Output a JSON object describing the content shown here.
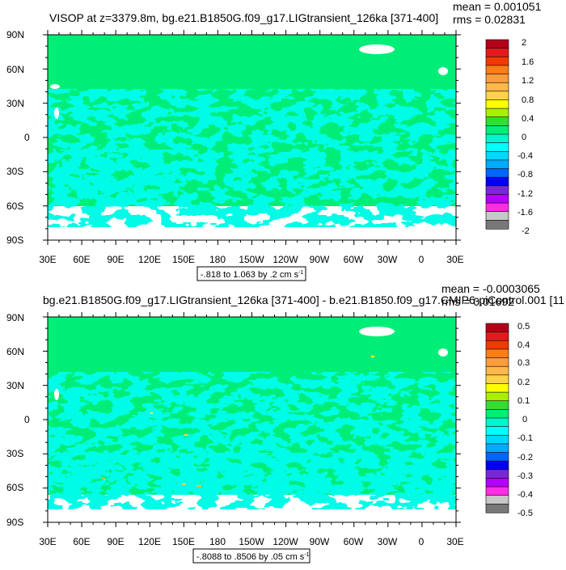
{
  "chart_data": [
    {
      "type": "heatmap",
      "title": "VISOP at z=3379.8m, bg.e21.B1850G.f09_g17.LIGtransient_126ka [371-400]",
      "stats": {
        "mean": "mean = 0.001051",
        "rms": "rms = 0.02831"
      },
      "range_label": "-.818 to 1.063 by .2 cm s",
      "range_unit_sup": "-1",
      "x_ticks": [
        "30E",
        "60E",
        "90E",
        "120E",
        "150E",
        "180",
        "150W",
        "120W",
        "90W",
        "60W",
        "30W",
        "0",
        "30E"
      ],
      "y_ticks": [
        "90N",
        "60N",
        "30N",
        "0",
        "30S",
        "60S",
        "90S"
      ],
      "colorbar_labels": [
        "2",
        "1.6",
        "1.2",
        "0.8",
        "0.4",
        "0",
        "-0.4",
        "-0.8",
        "-1.2",
        "-1.6",
        "-2"
      ],
      "grid": false
    },
    {
      "type": "heatmap",
      "title": "bg.e21.B1850G.f09_g17.LIGtransient_126ka [371-400] - b.e21.B1850.f09_g17.CMIP6-piControl.001 [11",
      "stats": {
        "mean": "mean = -0.0003065",
        "rms": "rms = 0.01692"
      },
      "range_label": "-.8088 to .8506 by .05 cm s",
      "range_unit_sup": "-1",
      "x_ticks": [
        "30E",
        "60E",
        "90E",
        "120E",
        "150E",
        "180",
        "150W",
        "120W",
        "90W",
        "60W",
        "30W",
        "0",
        "30E"
      ],
      "y_ticks": [
        "90N",
        "60N",
        "30N",
        "0",
        "30S",
        "60S",
        "90S"
      ],
      "colorbar_labels": [
        "0.5",
        "0.4",
        "0.3",
        "0.2",
        "0.1",
        "0",
        "-0.1",
        "-0.2",
        "-0.3",
        "-0.4",
        "-0.5"
      ],
      "grid": false
    }
  ],
  "colorbar_colors": [
    "#b3001a",
    "#e31a1c",
    "#f03b00",
    "#fd7e14",
    "#fd9c3c",
    "#fdb84a",
    "#ffd24a",
    "#ffff00",
    "#aaee00",
    "#33dd33",
    "#00ee77",
    "#00f5cc",
    "#00ffff",
    "#00d8ff",
    "#00aaff",
    "#0066ff",
    "#0000ee",
    "#7a28d6",
    "#b400ff",
    "#ff2ee6",
    "#c8c8c8",
    "#787878"
  ],
  "colors": {
    "field": "#00ee77",
    "anomaly": "#00f5cc",
    "missing": "#ffffff"
  }
}
